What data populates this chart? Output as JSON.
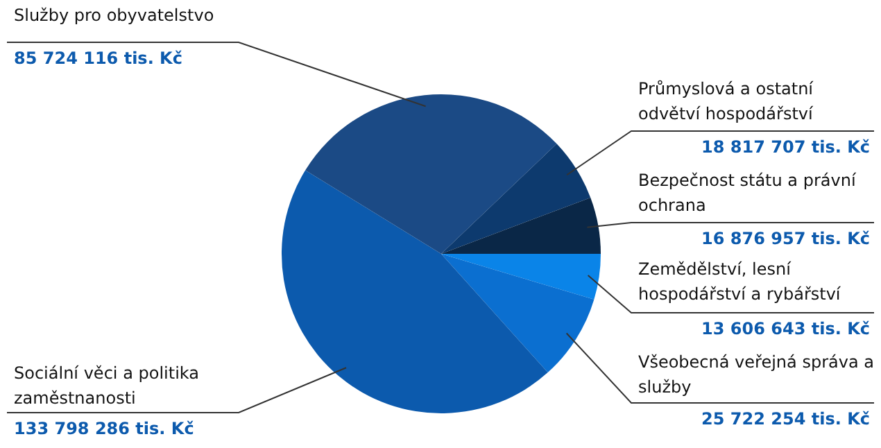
{
  "chart_data": {
    "type": "pie",
    "categories": [
      "Zemědělství, lesní hospodářství a rybářství",
      "Všeobecná veřejná správa a služby",
      "Sociální věci a politika zaměstnanosti",
      "Služby pro obyvatelstvo",
      "Průmyslová a ostatní odvětví hospodářství",
      "Bezpečnost státu a právní ochrana"
    ],
    "values": [
      13606643,
      25722254,
      133798286,
      85724116,
      18817707,
      16876957
    ],
    "value_labels": [
      "13 606 643 tis. Kč",
      "25 722 254 tis. Kč",
      "133 798 286 tis. Kč",
      "85 724 116 tis. Kč",
      "18 817 707 tis. Kč",
      "16 876 957 tis. Kč"
    ],
    "colors": [
      "#0a84e8",
      "#0b6fd0",
      "#0c5aad",
      "#1b4a85",
      "#0d3a6e",
      "#0a2747"
    ],
    "legend": false
  }
}
